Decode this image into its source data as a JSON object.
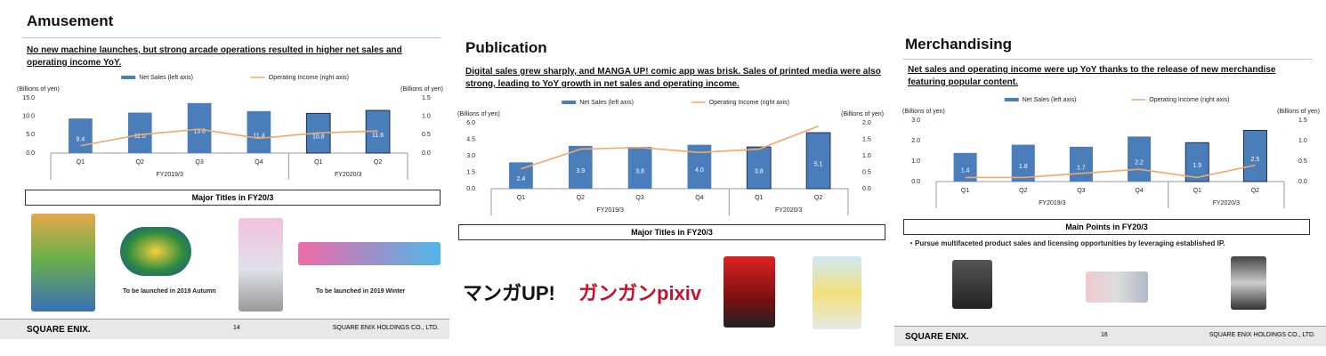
{
  "chart_data": [
    {
      "type": "bar",
      "title": "Amusement",
      "subtitle": "No new machine launches, but strong arcade operations resulted in higher net sales and operating income YoY.",
      "y_label": "(Billions of yen)",
      "y2_label": "(Billions of yen)",
      "categories": [
        "Q1",
        "Q2",
        "Q3",
        "Q4",
        "Q1",
        "Q2"
      ],
      "groups": [
        "FY2019/3",
        "FY2020/3"
      ],
      "series": [
        {
          "name": "Net Sales (left axis)",
          "color": "#4a7ebb",
          "values": [
            9.4,
            11.0,
            13.6,
            11.4,
            10.8,
            11.6
          ],
          "value_labels": [
            "9.4",
            "11.0",
            "13.6",
            "11.4",
            "10.8",
            "11.6"
          ]
        },
        {
          "name": "Operating Income (right axis)",
          "type": "line",
          "axis": "y2",
          "color": "#f0a868",
          "values": [
            0.2,
            0.5,
            0.65,
            0.4,
            0.55,
            0.6
          ]
        }
      ],
      "ylim": [
        0,
        15
      ],
      "yticks": [
        {
          "value": 0,
          "label": "0.0"
        },
        {
          "value": 5,
          "label": "5.0"
        },
        {
          "value": 10,
          "label": "10.0"
        },
        {
          "value": 15,
          "label": "15.0"
        }
      ],
      "y2lim": [
        0,
        1.5
      ],
      "y2ticks": [
        {
          "value": 0,
          "label": "0.0"
        },
        0.5,
        {
          "value": 1,
          "label": "1.0"
        },
        1.5
      ]
    },
    {
      "type": "bar",
      "title": "Publication",
      "subtitle": "Digital sales grew sharply, and MANGA UP! comic app was brisk. Sales of printed media were also strong, leading to YoY growth in net sales and operating income.",
      "y_label": "(Billions of yen)",
      "y2_label": "(Billions of yen)",
      "categories": [
        "Q1",
        "Q2",
        "Q3",
        "Q4",
        "Q1",
        "Q2"
      ],
      "groups": [
        "FY2019/3",
        "FY2020/3"
      ],
      "series": [
        {
          "name": "Net Sales (left axis)",
          "color": "#4a7ebb",
          "values": [
            2.4,
            3.9,
            3.8,
            4.0,
            3.8,
            5.1
          ],
          "value_labels": [
            "2.4",
            "3.9",
            "3.8",
            "4.0",
            "3.8",
            "5.1"
          ]
        },
        {
          "name": "Operating Income (right axis)",
          "type": "line",
          "axis": "y2",
          "color": "#f0a868",
          "values": [
            0.6,
            1.2,
            1.25,
            1.1,
            1.2,
            1.9
          ]
        }
      ],
      "ylim": [
        0,
        6
      ],
      "yticks": [
        {
          "value": 0,
          "label": "0.0"
        },
        1.5,
        {
          "value": 3,
          "label": "3.0"
        },
        4.5,
        {
          "value": 6,
          "label": "6.0"
        }
      ],
      "y2lim": [
        0,
        2
      ],
      "y2ticks": [
        {
          "value": 0,
          "label": "0.0"
        },
        0.5,
        {
          "value": 1,
          "label": "1.0"
        },
        1.5,
        {
          "value": 2,
          "label": "2.0"
        }
      ]
    },
    {
      "type": "bar",
      "title": "Merchandising",
      "subtitle": "Net sales and operating income were up YoY thanks to the release of new merchandise featuring popular content.",
      "y_label": "(Billions of yen)",
      "y2_label": "(Billions of yen)",
      "categories": [
        "Q1",
        "Q2",
        "Q3",
        "Q4",
        "Q1",
        "Q2"
      ],
      "groups": [
        "FY2019/3",
        "FY2020/3"
      ],
      "series": [
        {
          "name": "Net Sales (left axis)",
          "color": "#4a7ebb",
          "values": [
            1.4,
            1.8,
            1.7,
            2.2,
            1.9,
            2.5
          ],
          "value_labels": [
            "1.4",
            "1.8",
            "1.7",
            "2.2",
            "1.9",
            "2.5"
          ]
        },
        {
          "name": "Operating Income (right axis)",
          "type": "line",
          "axis": "y2",
          "color": "#f0a868",
          "values": [
            0.1,
            0.1,
            0.2,
            0.3,
            0.1,
            0.4
          ]
        }
      ],
      "ylim": [
        0,
        3
      ],
      "yticks": [
        {
          "value": 0,
          "label": "0.0"
        },
        {
          "value": 1,
          "label": "1.0"
        },
        {
          "value": 2,
          "label": "2.0"
        },
        {
          "value": 3,
          "label": "3.0"
        }
      ],
      "y2lim": [
        0,
        1.5
      ],
      "y2ticks": [
        {
          "value": 0,
          "label": "0.0"
        },
        0.5,
        {
          "value": 1,
          "label": "1.0"
        },
        1.5
      ]
    }
  ],
  "slides": [
    {
      "box_title": "Major Titles in FY20/3",
      "captions": [
        "To be launched in 2019 Autumn",
        "To be launched in 2019 Winter"
      ],
      "footer_left": "SQUARE ENIX.",
      "page": "14",
      "footer_right": "SQUARE ENIX HOLDINGS CO., LTD."
    },
    {
      "box_title": "Major Titles in FY20/3",
      "logos": [
        "マンガUP!",
        "ガンガンpixiv"
      ]
    },
    {
      "box_title": "Main Points in FY20/3",
      "bullet": "・Pursue multifaceted product sales and licensing opportunities by leveraging established IP.",
      "footer_left": "SQUARE ENIX.",
      "page": "16",
      "footer_right": "SQUARE ENIX HOLDINGS CO., LTD."
    }
  ]
}
